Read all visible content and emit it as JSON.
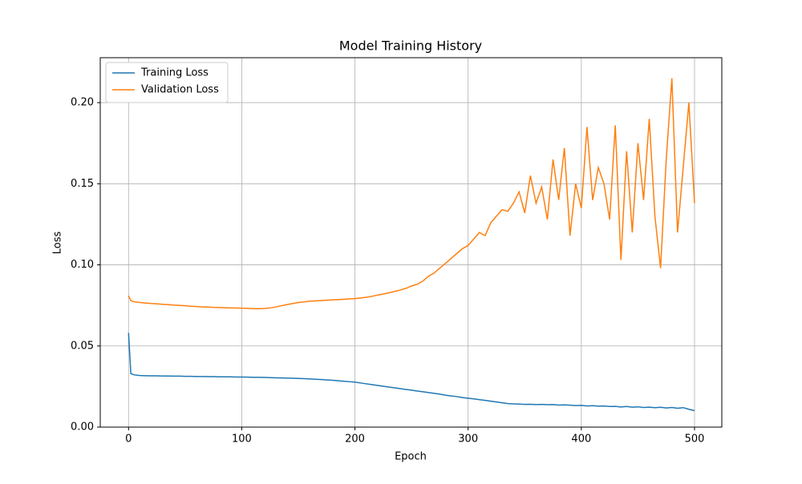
{
  "chart_data": {
    "type": "line",
    "title": "Model Training History",
    "x_label": "Epoch",
    "y_label": "Loss",
    "x": [
      0,
      2,
      5,
      10,
      15,
      20,
      25,
      30,
      35,
      40,
      45,
      50,
      55,
      60,
      65,
      70,
      75,
      80,
      85,
      90,
      95,
      100,
      105,
      110,
      115,
      120,
      125,
      130,
      135,
      140,
      145,
      150,
      155,
      160,
      165,
      170,
      175,
      180,
      185,
      190,
      195,
      200,
      205,
      210,
      215,
      220,
      225,
      230,
      235,
      240,
      245,
      250,
      255,
      260,
      265,
      270,
      275,
      280,
      285,
      290,
      295,
      300,
      305,
      310,
      315,
      320,
      325,
      330,
      335,
      340,
      345,
      350,
      355,
      360,
      365,
      370,
      375,
      380,
      385,
      390,
      395,
      400,
      405,
      410,
      415,
      420,
      425,
      430,
      435,
      440,
      445,
      450,
      455,
      460,
      465,
      470,
      475,
      480,
      485,
      490,
      495,
      500
    ],
    "series": [
      {
        "name": "Training Loss",
        "color": "#1f77b4",
        "values": [
          0.058,
          0.033,
          0.0322,
          0.0318,
          0.0317,
          0.0316,
          0.0316,
          0.0315,
          0.0315,
          0.0314,
          0.0314,
          0.0313,
          0.0313,
          0.0312,
          0.0312,
          0.0311,
          0.0311,
          0.031,
          0.031,
          0.031,
          0.0309,
          0.0309,
          0.0308,
          0.0307,
          0.0307,
          0.0306,
          0.0305,
          0.0304,
          0.0303,
          0.0302,
          0.0301,
          0.03,
          0.0299,
          0.0297,
          0.0295,
          0.0293,
          0.0291,
          0.0289,
          0.0286,
          0.0283,
          0.028,
          0.0277,
          0.0272,
          0.0267,
          0.0262,
          0.0257,
          0.0252,
          0.0247,
          0.0242,
          0.0237,
          0.0232,
          0.0228,
          0.0222,
          0.0218,
          0.0213,
          0.0208,
          0.0203,
          0.0197,
          0.0192,
          0.0188,
          0.0182,
          0.0178,
          0.0174,
          0.0169,
          0.0165,
          0.016,
          0.0155,
          0.015,
          0.0145,
          0.0143,
          0.0142,
          0.014,
          0.0141,
          0.0139,
          0.014,
          0.0138,
          0.0139,
          0.0136,
          0.0137,
          0.0135,
          0.0133,
          0.0134,
          0.013,
          0.0132,
          0.0129,
          0.013,
          0.0127,
          0.0128,
          0.0124,
          0.0127,
          0.0123,
          0.0125,
          0.0121,
          0.0123,
          0.012,
          0.0122,
          0.0118,
          0.0121,
          0.0116,
          0.012,
          0.011,
          0.0102
        ]
      },
      {
        "name": "Validation Loss",
        "color": "#ff7f0e",
        "values": [
          0.081,
          0.078,
          0.0772,
          0.0768,
          0.0765,
          0.0762,
          0.076,
          0.0757,
          0.0755,
          0.0752,
          0.075,
          0.0748,
          0.0745,
          0.0743,
          0.0741,
          0.074,
          0.0738,
          0.0737,
          0.0736,
          0.0735,
          0.0734,
          0.0733,
          0.0732,
          0.073,
          0.073,
          0.0731,
          0.0735,
          0.074,
          0.0748,
          0.0755,
          0.0762,
          0.0768,
          0.0772,
          0.0776,
          0.0778,
          0.078,
          0.0782,
          0.0784,
          0.0786,
          0.0788,
          0.079,
          0.0792,
          0.0796,
          0.08,
          0.0806,
          0.0814,
          0.082,
          0.0828,
          0.0836,
          0.0845,
          0.0855,
          0.087,
          0.088,
          0.09,
          0.093,
          0.095,
          0.098,
          0.101,
          0.104,
          0.107,
          0.11,
          0.112,
          0.116,
          0.12,
          0.118,
          0.126,
          0.13,
          0.134,
          0.133,
          0.138,
          0.145,
          0.132,
          0.155,
          0.138,
          0.148,
          0.128,
          0.165,
          0.14,
          0.172,
          0.118,
          0.15,
          0.135,
          0.185,
          0.14,
          0.16,
          0.15,
          0.128,
          0.186,
          0.103,
          0.17,
          0.12,
          0.175,
          0.14,
          0.19,
          0.13,
          0.098,
          0.165,
          0.215,
          0.12,
          0.16,
          0.2,
          0.138
        ]
      }
    ],
    "xlim": [
      -25,
      524.1
    ],
    "ylim": [
      0,
      0.2277
    ],
    "xticks": [
      0,
      100,
      200,
      300,
      400,
      500
    ],
    "yticks": [
      {
        "value": 0,
        "label": "0.00"
      },
      {
        "value": 0.05,
        "label": "0.05"
      },
      {
        "value": 0.1,
        "label": "0.10"
      },
      {
        "value": 0.15,
        "label": "0.15"
      },
      {
        "value": 0.2,
        "label": "0.20"
      }
    ],
    "grid": true,
    "legend": "upper left"
  }
}
